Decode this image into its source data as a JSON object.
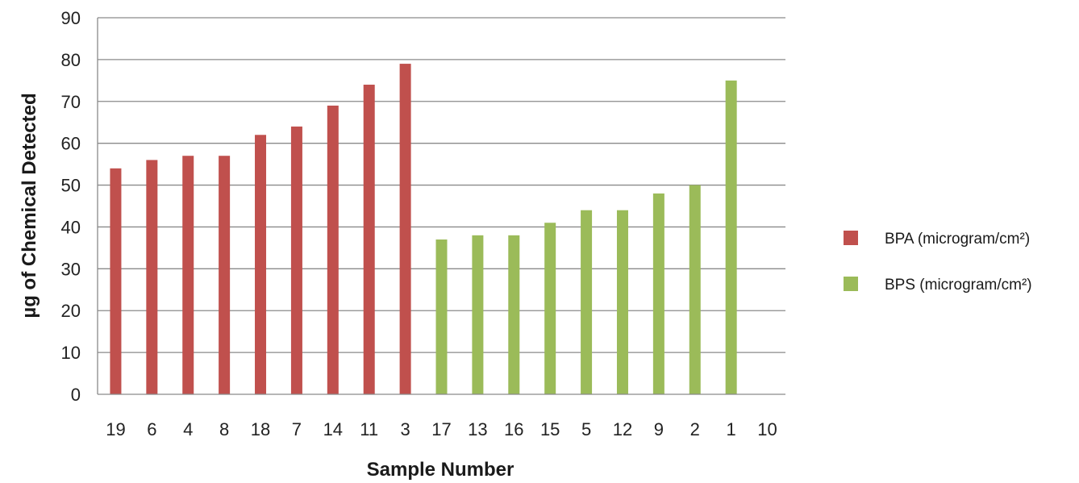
{
  "chart_data": {
    "type": "bar",
    "title": "",
    "xlabel": "Sample Number",
    "ylabel": "µg of Chemical Detected",
    "ylim": [
      0,
      90
    ],
    "yticks": [
      0,
      10,
      20,
      30,
      40,
      50,
      60,
      70,
      80,
      90
    ],
    "grid": true,
    "legend_position": "right",
    "categories": [
      "19",
      "6",
      "4",
      "8",
      "18",
      "7",
      "14",
      "11",
      "3",
      "17",
      "13",
      "16",
      "15",
      "5",
      "12",
      "9",
      "2",
      "1",
      "10"
    ],
    "series": [
      {
        "name": "BPA (microgram/cm²)",
        "color": "#c0504d",
        "values": [
          54,
          56,
          57,
          57,
          62,
          64,
          69,
          74,
          79,
          null,
          null,
          null,
          null,
          null,
          null,
          null,
          null,
          null,
          null
        ]
      },
      {
        "name": "BPS (microgram/cm²)",
        "color": "#9bbb59",
        "values": [
          null,
          null,
          null,
          null,
          null,
          null,
          null,
          null,
          null,
          37,
          38,
          38,
          41,
          44,
          44,
          48,
          50,
          75,
          null
        ]
      }
    ]
  }
}
